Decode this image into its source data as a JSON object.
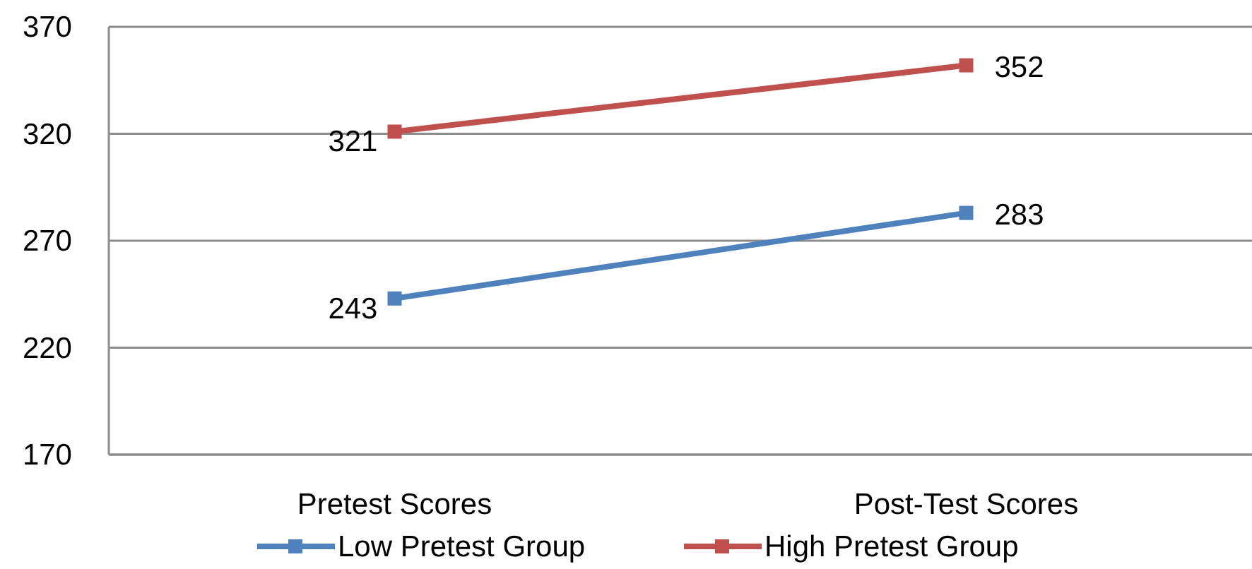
{
  "chart_data": {
    "type": "line",
    "categories": [
      "Pretest Scores",
      "Post-Test Scores"
    ],
    "series": [
      {
        "name": "Low Pretest Group",
        "color": "#4f81bd",
        "values": [
          243,
          283
        ]
      },
      {
        "name": "High Pretest Group",
        "color": "#c0504d",
        "values": [
          321,
          352
        ]
      }
    ],
    "ylim": [
      170,
      370
    ],
    "yticks": [
      170,
      220,
      270,
      320,
      370
    ],
    "grid": "y",
    "legend": "bottom",
    "marker": "square",
    "data_labels": true
  }
}
